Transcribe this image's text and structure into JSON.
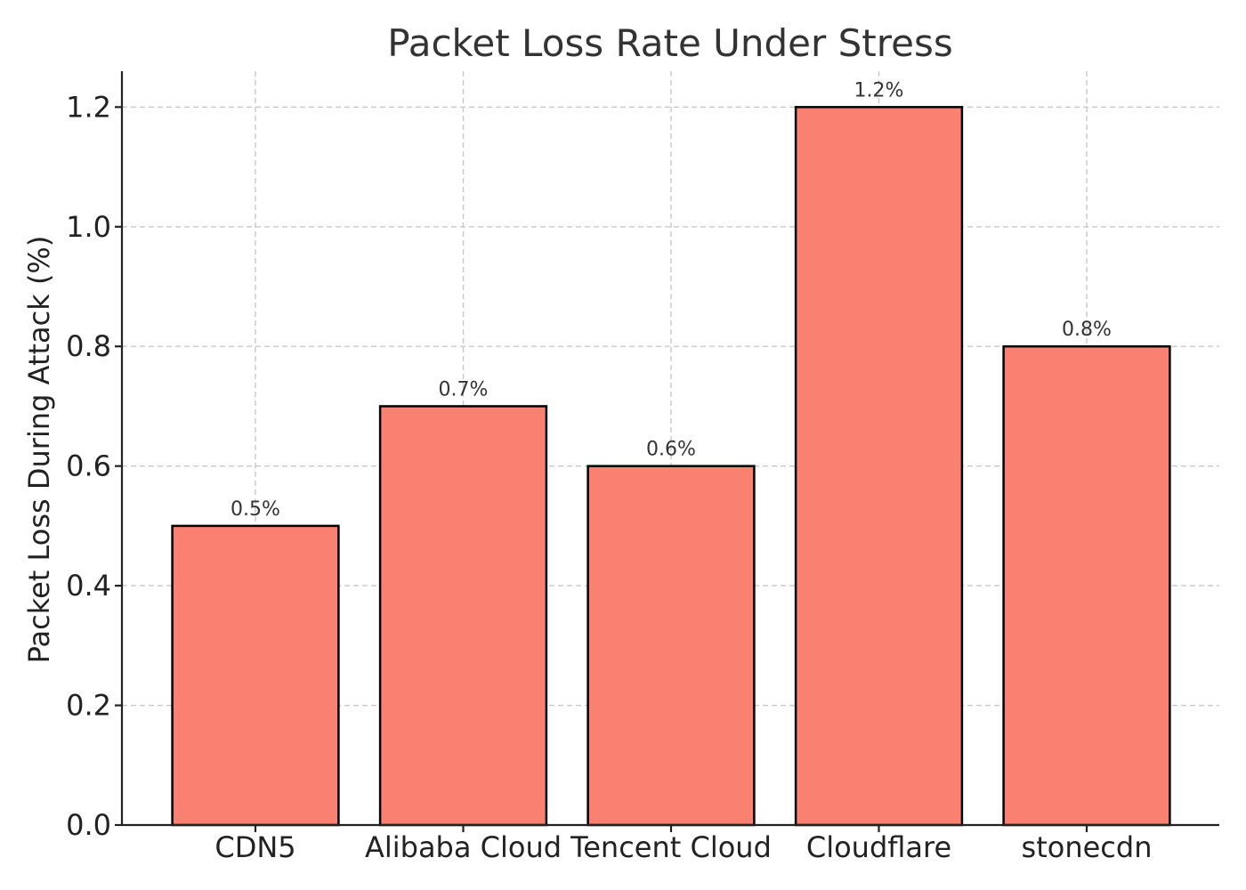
{
  "chart_data": {
    "type": "bar",
    "title": "Packet Loss Rate Under Stress",
    "xlabel": "",
    "ylabel": "Packet Loss During Attack (%)",
    "categories": [
      "CDN5",
      "Alibaba Cloud",
      "Tencent Cloud",
      "Cloudflare",
      "stonecdn"
    ],
    "values": [
      0.5,
      0.7,
      0.6,
      1.2,
      0.8
    ],
    "data_labels": [
      "0.5%",
      "0.7%",
      "0.6%",
      "1.2%",
      "0.8%"
    ],
    "yticks": [
      0.0,
      0.2,
      0.4,
      0.6,
      0.8,
      1.0,
      1.2
    ],
    "ytick_labels": [
      "0.0",
      "0.2",
      "0.4",
      "0.6",
      "0.8",
      "1.0",
      "1.2"
    ],
    "ylim": [
      0,
      1.26
    ],
    "grid": true,
    "bar_color": "#fa8072",
    "bar_edge_color": "#000000"
  }
}
